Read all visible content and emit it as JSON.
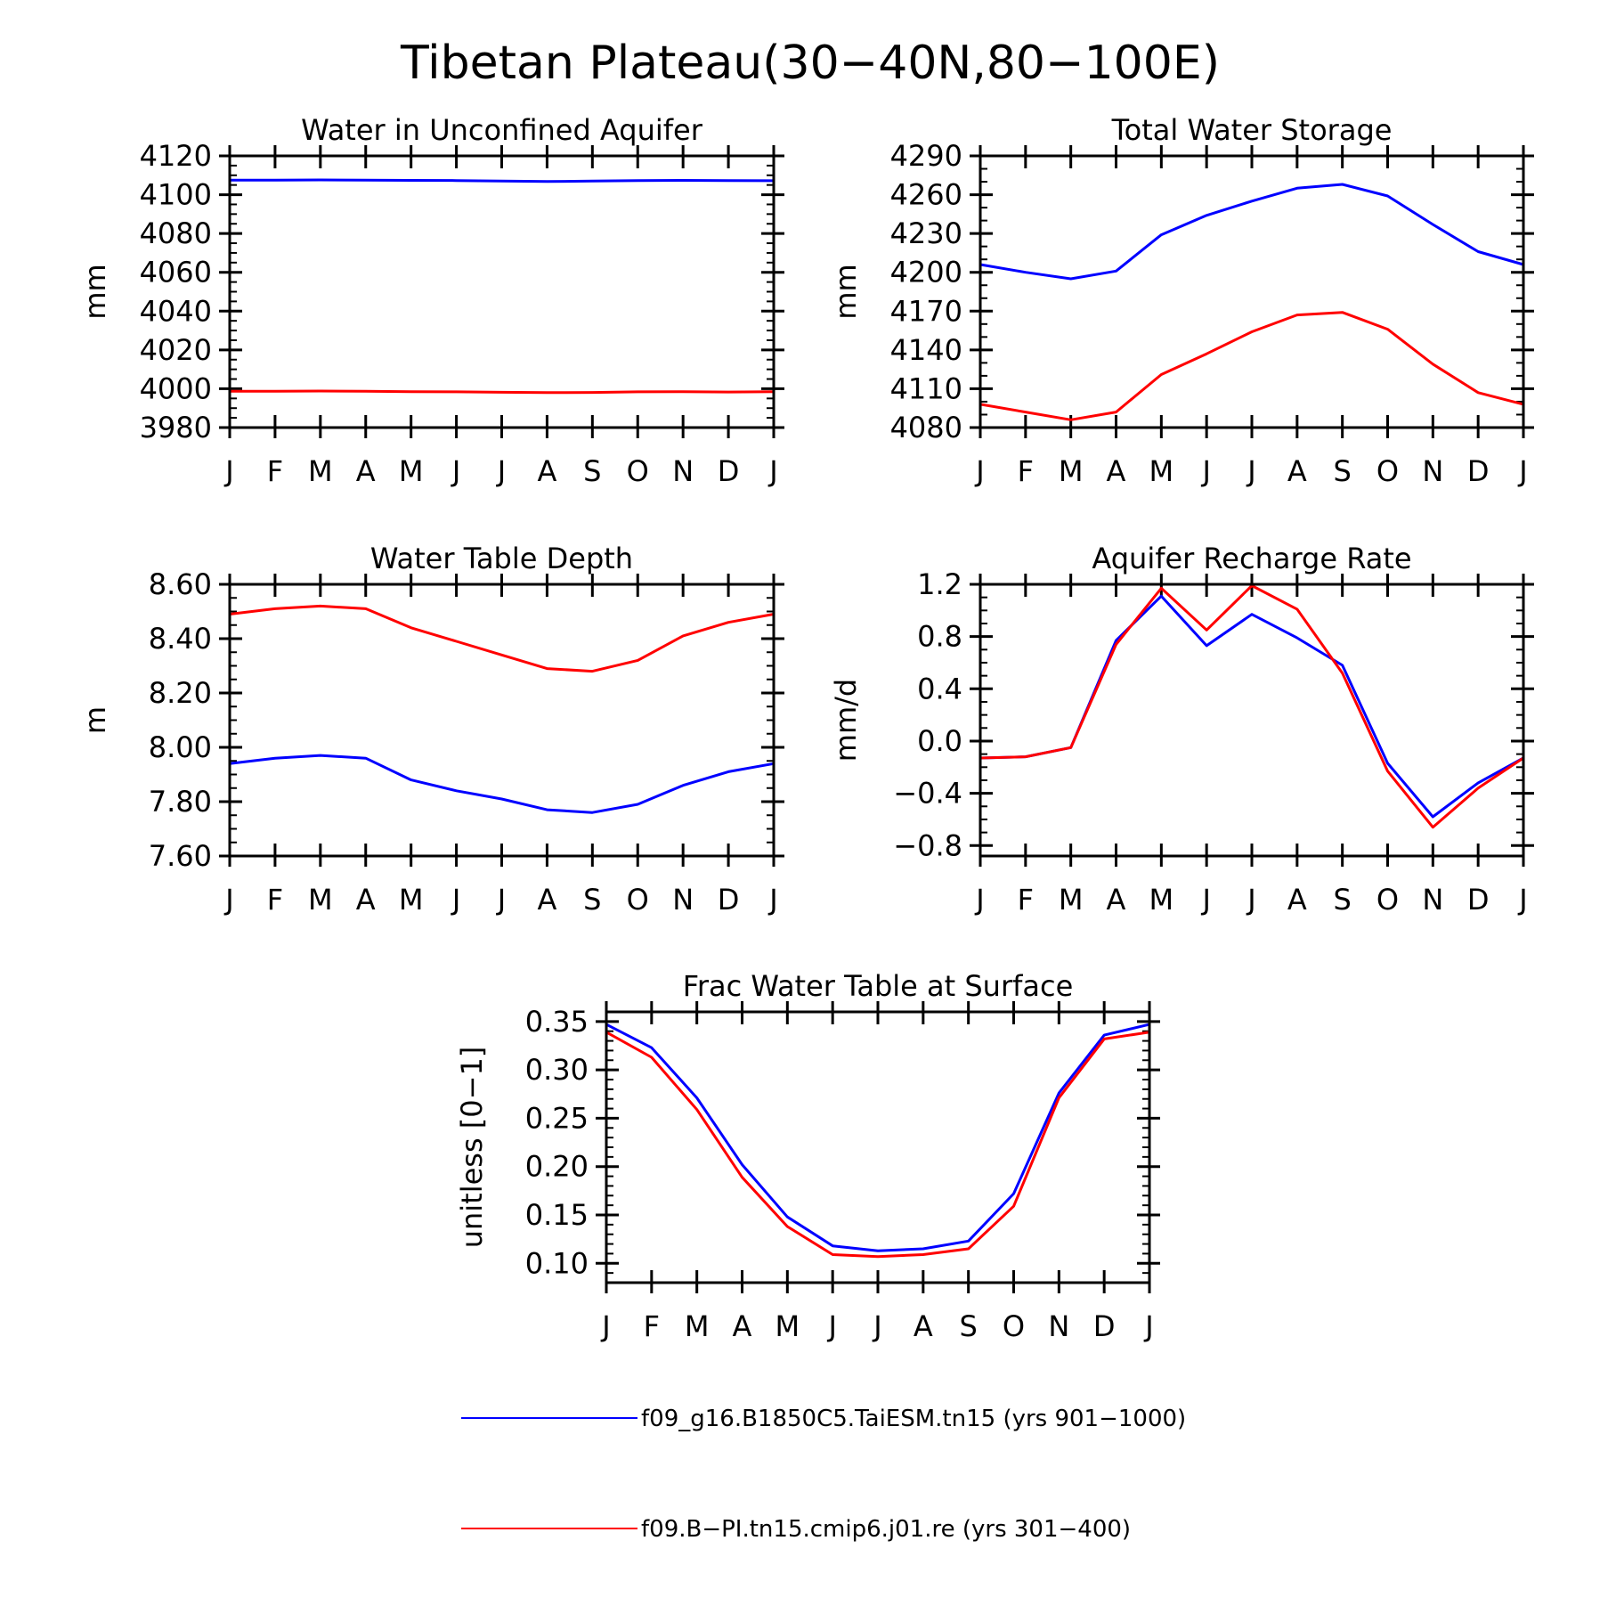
{
  "figure": {
    "title": "Tibetan Plateau(30−40N,80−100E)",
    "months": [
      "J",
      "F",
      "M",
      "A",
      "M",
      "J",
      "J",
      "A",
      "S",
      "O",
      "N",
      "D",
      "J"
    ]
  },
  "legend": {
    "entries": [
      {
        "label": "f09_g16.B1850C5.TaiESM.tn15 (yrs 901−1000)",
        "color": "#0000ff"
      },
      {
        "label": "f09.B−PI.tn15.cmip6.j01.re (yrs 301−400)",
        "color": "#ff0000"
      }
    ]
  },
  "chart_data": [
    {
      "type": "line",
      "title": "Water in Unconfined Aquifer",
      "ylabel": "mm",
      "x": [
        "J",
        "F",
        "M",
        "A",
        "M",
        "J",
        "J",
        "A",
        "S",
        "O",
        "N",
        "D",
        "J"
      ],
      "ylim": [
        3980,
        4120
      ],
      "yticks": [
        "4120",
        "4100",
        "4080",
        "4060",
        "4040",
        "4020",
        "4000",
        "3980"
      ],
      "yticks_values": [
        4120,
        4100,
        4080,
        4060,
        4040,
        4020,
        4000,
        3980
      ],
      "minor_step": 5,
      "series": [
        {
          "color": "#0000ff",
          "values": [
            4107.5,
            4107.5,
            4107.6,
            4107.5,
            4107.4,
            4107.3,
            4107,
            4106.8,
            4107,
            4107.3,
            4107.4,
            4107.3,
            4107.2
          ]
        },
        {
          "color": "#ff0000",
          "values": [
            3998.7,
            3998.7,
            3998.8,
            3998.7,
            3998.5,
            3998.4,
            3998.2,
            3998,
            3998.1,
            3998.4,
            3998.5,
            3998.3,
            3998.5
          ]
        }
      ]
    },
    {
      "type": "line",
      "title": "Total Water Storage",
      "ylabel": "mm",
      "x": [
        "J",
        "F",
        "M",
        "A",
        "M",
        "J",
        "J",
        "A",
        "S",
        "O",
        "N",
        "D",
        "J"
      ],
      "ylim": [
        4080,
        4290
      ],
      "yticks": [
        "4290",
        "4260",
        "4230",
        "4200",
        "4170",
        "4140",
        "4110",
        "4080"
      ],
      "yticks_values": [
        4290,
        4260,
        4230,
        4200,
        4170,
        4140,
        4110,
        4080
      ],
      "minor_step": 10,
      "series": [
        {
          "color": "#0000ff",
          "values": [
            4206,
            4200,
            4195,
            4201,
            4229,
            4244,
            4255,
            4265,
            4268,
            4259,
            4237,
            4216,
            4206
          ]
        },
        {
          "color": "#ff0000",
          "values": [
            4098,
            4092,
            4086,
            4092,
            4121,
            4137,
            4154,
            4167,
            4169,
            4156,
            4129,
            4107,
            4098
          ]
        }
      ]
    },
    {
      "type": "line",
      "title": "Water Table Depth",
      "ylabel": "m",
      "x": [
        "J",
        "F",
        "M",
        "A",
        "M",
        "J",
        "J",
        "A",
        "S",
        "O",
        "N",
        "D",
        "J"
      ],
      "ylim": [
        7.6,
        8.6
      ],
      "yticks": [
        "8.60",
        "8.40",
        "8.20",
        "8.00",
        "7.80",
        "7.60"
      ],
      "yticks_values": [
        8.6,
        8.4,
        8.2,
        8.0,
        7.8,
        7.6
      ],
      "minor_step": 0.05,
      "series": [
        {
          "color": "#ff0000",
          "values": [
            8.49,
            8.51,
            8.52,
            8.51,
            8.44,
            8.39,
            8.34,
            8.29,
            8.28,
            8.32,
            8.41,
            8.46,
            8.49
          ]
        },
        {
          "color": "#0000ff",
          "values": [
            7.94,
            7.96,
            7.97,
            7.96,
            7.88,
            7.84,
            7.81,
            7.77,
            7.76,
            7.79,
            7.86,
            7.91,
            7.94
          ]
        }
      ]
    },
    {
      "type": "line",
      "title": "Aquifer Recharge Rate",
      "ylabel": "mm/d",
      "x": [
        "J",
        "F",
        "M",
        "A",
        "M",
        "J",
        "J",
        "A",
        "S",
        "O",
        "N",
        "D",
        "J"
      ],
      "ylim": [
        -0.88,
        1.2
      ],
      "yticks": [
        "1.2",
        "0.8",
        "0.4",
        "0.0",
        "−0.4",
        "−0.8"
      ],
      "yticks_values": [
        1.2,
        0.8,
        0.4,
        0.0,
        -0.4,
        -0.8
      ],
      "minor_step": 0.1,
      "series": [
        {
          "color": "#0000ff",
          "values": [
            -0.13,
            -0.12,
            -0.05,
            0.77,
            1.11,
            0.73,
            0.97,
            0.79,
            0.58,
            -0.17,
            -0.58,
            -0.32,
            -0.13
          ]
        },
        {
          "color": "#ff0000",
          "values": [
            -0.13,
            -0.12,
            -0.05,
            0.74,
            1.17,
            0.85,
            1.19,
            1.01,
            0.52,
            -0.23,
            -0.66,
            -0.36,
            -0.13
          ]
        }
      ]
    },
    {
      "type": "line",
      "title": "Frac Water Table at Surface",
      "ylabel": "unitless [0−1]",
      "x": [
        "J",
        "F",
        "M",
        "A",
        "M",
        "J",
        "J",
        "A",
        "S",
        "O",
        "N",
        "D",
        "J"
      ],
      "ylim": [
        0.08,
        0.36
      ],
      "yticks": [
        "0.35",
        "0.30",
        "0.25",
        "0.20",
        "0.15",
        "0.10"
      ],
      "yticks_values": [
        0.35,
        0.3,
        0.25,
        0.2,
        0.15,
        0.1
      ],
      "minor_step": 0.01,
      "series": [
        {
          "color": "#0000ff",
          "values": [
            0.347,
            0.323,
            0.271,
            0.202,
            0.148,
            0.118,
            0.113,
            0.115,
            0.123,
            0.172,
            0.276,
            0.336,
            0.347
          ]
        },
        {
          "color": "#ff0000",
          "values": [
            0.339,
            0.313,
            0.259,
            0.189,
            0.138,
            0.109,
            0.107,
            0.109,
            0.115,
            0.159,
            0.271,
            0.332,
            0.339
          ]
        }
      ]
    }
  ]
}
